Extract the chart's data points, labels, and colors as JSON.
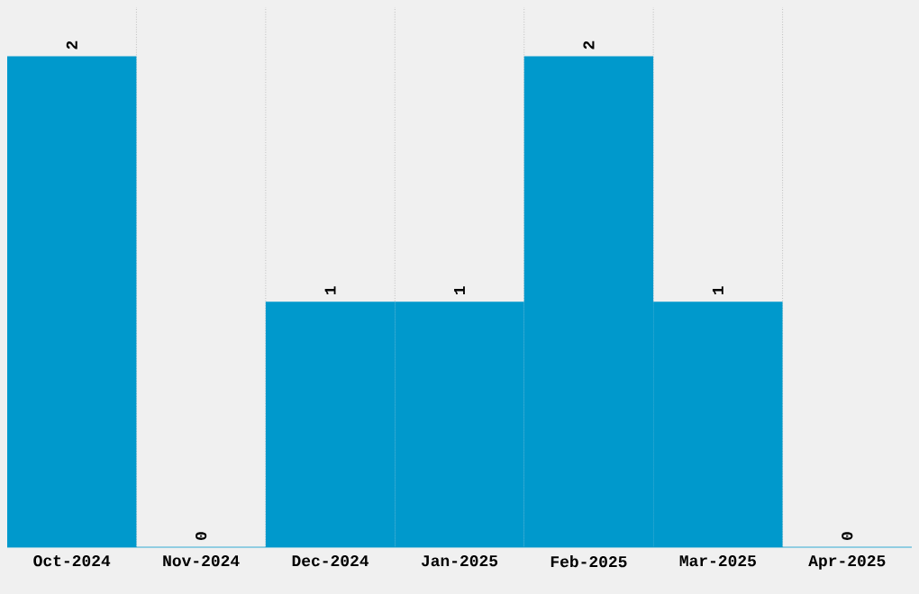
{
  "chart_data": {
    "type": "bar",
    "categories": [
      "Oct-2024",
      "Nov-2024",
      "Dec-2024",
      "Jan-2025",
      "Feb-2025",
      "Mar-2025",
      "Apr-2025"
    ],
    "values": [
      2,
      0,
      1,
      1,
      2,
      1,
      0
    ],
    "color": "#0099cc",
    "data_labels": true,
    "grid": "x",
    "tick_labels": "x",
    "ylim": [
      0,
      2.2
    ]
  }
}
